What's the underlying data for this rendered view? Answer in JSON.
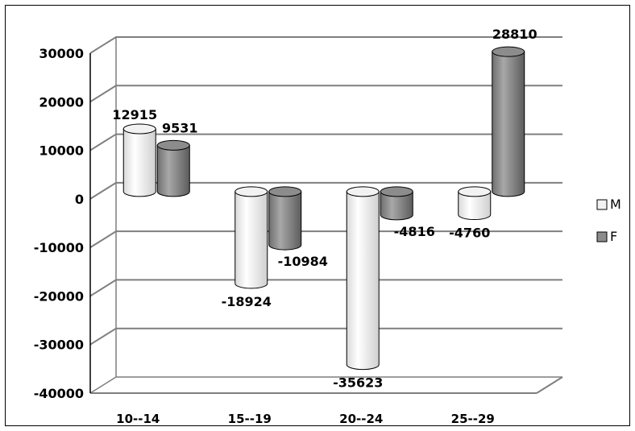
{
  "chart_data": {
    "type": "bar",
    "title": "",
    "xlabel": "",
    "ylabel": "",
    "categories": [
      "10--14",
      "15--19",
      "20--24",
      "25--29"
    ],
    "series": [
      {
        "name": "M",
        "values": [
          12915,
          -18924,
          -35623,
          -4760
        ]
      },
      {
        "name": "F",
        "values": [
          9531,
          -10984,
          -4816,
          28810
        ]
      }
    ],
    "ylim": [
      -40000,
      30000
    ],
    "yticks": [
      30000,
      20000,
      10000,
      0,
      -10000,
      -20000,
      -30000,
      -40000
    ],
    "grid": true,
    "legend": "right",
    "style": "3d-cylinder",
    "colors": {
      "M": "#f2f2f2",
      "F": "#8c8c8c",
      "grid": "#7f7f7f"
    }
  }
}
